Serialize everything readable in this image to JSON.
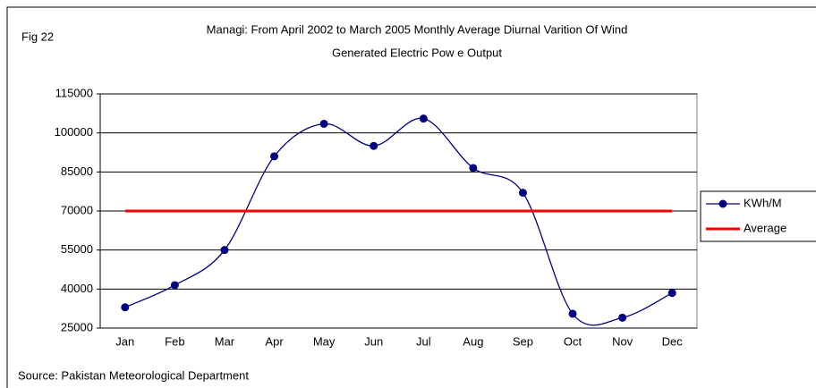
{
  "chart_data": {
    "type": "line",
    "fig_label": "Fig 22",
    "title": [
      "Managi: From April 2002 to March 2005 Monthly Average Diurnal Varition Of Wind",
      "Generated Electric Pow e Output"
    ],
    "source": "Source: Pakistan Meteorological Department",
    "categories": [
      "Jan",
      "Feb",
      "Mar",
      "Apr",
      "May",
      "Jun",
      "Jul",
      "Aug",
      "Sep",
      "Oct",
      "Nov",
      "Dec"
    ],
    "series": [
      {
        "name": "KWh/M",
        "color": "#000080",
        "smooth": true,
        "markers": true,
        "values": [
          33000,
          41500,
          55000,
          91000,
          103500,
          95000,
          105500,
          86500,
          77000,
          30500,
          29000,
          38500
        ]
      },
      {
        "name": "Average",
        "color": "#ff0000",
        "smooth": false,
        "markers": false,
        "values": [
          70000,
          70000,
          70000,
          70000,
          70000,
          70000,
          70000,
          70000,
          70000,
          70000,
          70000,
          70000
        ]
      }
    ],
    "ylim": [
      25000,
      115000
    ],
    "yticks": [
      25000,
      40000,
      55000,
      70000,
      85000,
      100000,
      115000
    ],
    "grid": true,
    "legend": "right"
  }
}
